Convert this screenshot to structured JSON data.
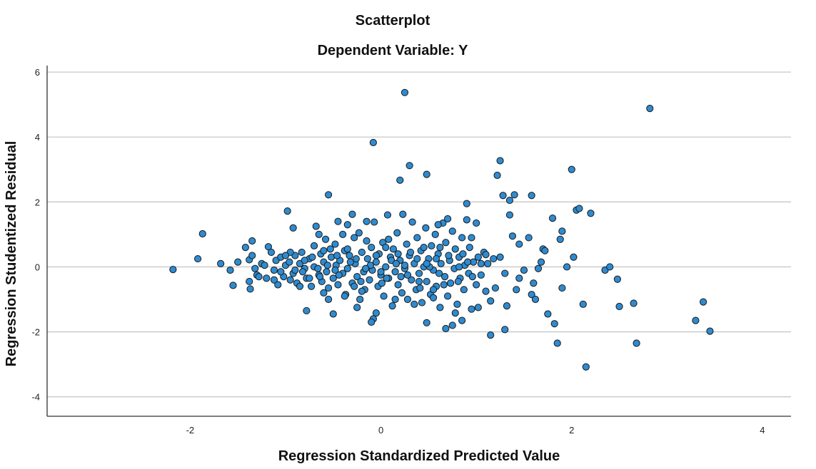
{
  "chart_data": {
    "type": "scatter",
    "title": "Scatterplot",
    "subtitle": "Dependent Variable: Y",
    "xlabel": "Regression Standardized Predicted Value",
    "ylabel": "Regression Studentized Residual",
    "xlim": [
      -3.5,
      4.3
    ],
    "ylim": [
      -4.6,
      6.2
    ],
    "xticks": [
      -2,
      0,
      2,
      4
    ],
    "yticks": [
      -4,
      -2,
      0,
      2,
      4,
      6
    ],
    "grid": "horizontal",
    "colors": {
      "point_fill": "#2e8bd0",
      "point_stroke": "#1a1a1a",
      "grid": "#c8c8c8",
      "axis": "#333333"
    },
    "points": [
      [
        -2.18,
        -0.08
      ],
      [
        -1.92,
        0.25
      ],
      [
        -1.87,
        1.02
      ],
      [
        -1.68,
        0.1
      ],
      [
        -1.58,
        -0.1
      ],
      [
        -1.55,
        -0.57
      ],
      [
        -1.5,
        0.15
      ],
      [
        -1.42,
        0.6
      ],
      [
        -1.38,
        0.22
      ],
      [
        -1.38,
        -0.45
      ],
      [
        -1.37,
        -0.68
      ],
      [
        -1.35,
        0.8
      ],
      [
        -1.32,
        -0.05
      ],
      [
        -1.3,
        -0.25
      ],
      [
        -1.25,
        0.1
      ],
      [
        -1.2,
        -0.35
      ],
      [
        -1.18,
        0.62
      ],
      [
        -1.15,
        0.45
      ],
      [
        -1.12,
        -0.1
      ],
      [
        -1.1,
        0.2
      ],
      [
        -1.08,
        -0.55
      ],
      [
        -1.05,
        0.3
      ],
      [
        -1.02,
        -0.3
      ],
      [
        -1.0,
        0.05
      ],
      [
        -0.98,
        1.72
      ],
      [
        -0.96,
        0.15
      ],
      [
        -0.95,
        -0.4
      ],
      [
        -0.92,
        -0.2
      ],
      [
        -0.9,
        0.35
      ],
      [
        -0.88,
        -0.5
      ],
      [
        -0.85,
        0.1
      ],
      [
        -0.83,
        0.45
      ],
      [
        -0.8,
        -0.05
      ],
      [
        -0.78,
        -0.35
      ],
      [
        -0.78,
        -1.35
      ],
      [
        -0.75,
        0.25
      ],
      [
        -0.73,
        -0.6
      ],
      [
        -0.7,
        0.0
      ],
      [
        -0.68,
        1.25
      ],
      [
        -0.65,
        -0.25
      ],
      [
        -0.63,
        0.4
      ],
      [
        -0.62,
        -0.45
      ],
      [
        -0.6,
        0.15
      ],
      [
        -0.58,
        0.85
      ],
      [
        -0.57,
        -0.15
      ],
      [
        -0.55,
        -0.65
      ],
      [
        -0.55,
        2.22
      ],
      [
        -0.52,
        0.3
      ],
      [
        -0.5,
        -0.35
      ],
      [
        -0.48,
        0.7
      ],
      [
        -0.47,
        0.05
      ],
      [
        -0.45,
        -0.55
      ],
      [
        -0.43,
        0.2
      ],
      [
        -0.4,
        -0.2
      ],
      [
        -0.38,
        0.5
      ],
      [
        -0.37,
        -0.85
      ],
      [
        -0.35,
        1.3
      ],
      [
        -0.35,
        -0.05
      ],
      [
        -0.33,
        0.35
      ],
      [
        -0.3,
        -0.5
      ],
      [
        -0.28,
        0.9
      ],
      [
        -0.27,
        0.1
      ],
      [
        -0.25,
        -0.3
      ],
      [
        -0.23,
        1.05
      ],
      [
        -0.22,
        -1.0
      ],
      [
        -0.2,
        0.45
      ],
      [
        -0.18,
        -0.15
      ],
      [
        -0.17,
        -0.7
      ],
      [
        -0.15,
        1.4
      ],
      [
        -0.14,
        0.25
      ],
      [
        -0.12,
        -0.4
      ],
      [
        -0.1,
        0.6
      ],
      [
        -0.09,
        -0.1
      ],
      [
        -0.07,
        1.38
      ],
      [
        -0.05,
        -1.42
      ],
      [
        -0.05,
        0.15
      ],
      [
        -0.03,
        -0.6
      ],
      [
        -0.02,
        0.4
      ],
      [
        0.0,
        -0.25
      ],
      [
        0.02,
        0.75
      ],
      [
        0.03,
        -0.9
      ],
      [
        0.05,
        0.0
      ],
      [
        0.07,
        1.6
      ],
      [
        0.08,
        -0.35
      ],
      [
        0.1,
        0.3
      ],
      [
        0.12,
        -1.2
      ],
      [
        0.13,
        0.55
      ],
      [
        0.15,
        -0.15
      ],
      [
        0.17,
        1.05
      ],
      [
        0.18,
        -0.55
      ],
      [
        0.2,
        0.2
      ],
      [
        0.22,
        -0.8
      ],
      [
        0.23,
        1.62
      ],
      [
        0.25,
        -0.05
      ],
      [
        0.27,
        0.7
      ],
      [
        0.28,
        -1.0
      ],
      [
        0.3,
        0.35
      ],
      [
        0.32,
        -0.4
      ],
      [
        0.33,
        1.38
      ],
      [
        0.35,
        0.1
      ],
      [
        0.37,
        -0.7
      ],
      [
        0.38,
        0.9
      ],
      [
        0.4,
        -0.2
      ],
      [
        0.42,
        0.5
      ],
      [
        0.43,
        -1.1
      ],
      [
        0.45,
        0.0
      ],
      [
        0.47,
        1.2
      ],
      [
        0.48,
        -0.45
      ],
      [
        0.5,
        0.25
      ],
      [
        0.52,
        -0.85
      ],
      [
        0.53,
        0.65
      ],
      [
        0.55,
        -0.1
      ],
      [
        0.57,
        1.0
      ],
      [
        0.58,
        -0.6
      ],
      [
        0.6,
        0.4
      ],
      [
        0.62,
        -1.25
      ],
      [
        0.63,
        0.1
      ],
      [
        0.65,
        1.35
      ],
      [
        0.67,
        -0.3
      ],
      [
        0.68,
        0.75
      ],
      [
        0.7,
        -0.9
      ],
      [
        0.72,
        0.2
      ],
      [
        0.73,
        -0.5
      ],
      [
        0.75,
        1.1
      ],
      [
        0.77,
        -0.05
      ],
      [
        0.78,
        0.55
      ],
      [
        0.8,
        -1.15
      ],
      [
        0.82,
        0.3
      ],
      [
        0.83,
        -0.35
      ],
      [
        0.85,
        0.9
      ],
      [
        0.87,
        -0.7
      ],
      [
        0.88,
        0.05
      ],
      [
        0.9,
        1.45
      ],
      [
        0.92,
        -0.2
      ],
      [
        0.93,
        0.6
      ],
      [
        0.95,
        -1.3
      ],
      [
        0.97,
        0.15
      ],
      [
        -0.82,
        -0.15
      ],
      [
        -0.72,
        0.3
      ],
      [
        -0.64,
        -0.3
      ],
      [
        -0.53,
        0.55
      ],
      [
        -0.44,
        -0.25
      ],
      [
        -0.32,
        0.15
      ],
      [
        -0.21,
        -0.45
      ],
      [
        -0.11,
        0.05
      ],
      [
        0.01,
        -0.5
      ],
      [
        0.11,
        0.2
      ],
      [
        0.21,
        -0.3
      ],
      [
        0.31,
        0.45
      ],
      [
        0.41,
        -0.65
      ],
      [
        0.51,
        0.0
      ],
      [
        0.61,
        -0.2
      ],
      [
        0.71,
        0.35
      ],
      [
        0.81,
        -0.45
      ],
      [
        0.91,
        0.15
      ],
      [
        1.0,
        -0.55
      ],
      [
        1.02,
        0.3
      ],
      [
        1.05,
        -0.25
      ],
      [
        1.08,
        0.45
      ],
      [
        1.1,
        -0.75
      ],
      [
        1.12,
        0.1
      ],
      [
        1.15,
        -1.05
      ],
      [
        1.18,
        0.25
      ],
      [
        1.2,
        -0.65
      ],
      [
        1.22,
        2.82
      ],
      [
        1.25,
        3.27
      ],
      [
        1.28,
        2.2
      ],
      [
        1.3,
        -0.2
      ],
      [
        1.32,
        -1.2
      ],
      [
        1.35,
        2.05
      ],
      [
        1.38,
        0.95
      ],
      [
        1.4,
        2.22
      ],
      [
        1.42,
        -0.7
      ],
      [
        1.45,
        0.7
      ],
      [
        1.5,
        -0.1
      ],
      [
        1.55,
        0.9
      ],
      [
        1.58,
        2.2
      ],
      [
        1.6,
        -0.5
      ],
      [
        1.65,
        -0.05
      ],
      [
        1.7,
        0.55
      ],
      [
        1.72,
        0.5
      ],
      [
        1.75,
        -1.45
      ],
      [
        1.8,
        1.5
      ],
      [
        1.82,
        -1.75
      ],
      [
        1.85,
        -2.35
      ],
      [
        1.88,
        0.85
      ],
      [
        1.9,
        1.1
      ],
      [
        1.95,
        0.0
      ],
      [
        2.0,
        3.0
      ],
      [
        2.05,
        1.75
      ],
      [
        2.08,
        1.8
      ],
      [
        2.12,
        -1.15
      ],
      [
        2.15,
        -3.08
      ],
      [
        2.2,
        1.65
      ],
      [
        2.35,
        -0.1
      ],
      [
        2.4,
        0.0
      ],
      [
        2.48,
        -0.38
      ],
      [
        2.5,
        -1.22
      ],
      [
        2.65,
        -1.12
      ],
      [
        2.68,
        -2.35
      ],
      [
        2.82,
        4.88
      ],
      [
        3.3,
        -1.65
      ],
      [
        3.38,
        -1.08
      ],
      [
        3.45,
        -1.98
      ],
      [
        0.25,
        5.37
      ],
      [
        -0.08,
        3.83
      ],
      [
        0.3,
        3.12
      ],
      [
        0.2,
        2.67
      ],
      [
        0.48,
        2.85
      ],
      [
        1.0,
        1.35
      ],
      [
        1.1,
        0.38
      ],
      [
        1.3,
        -1.93
      ],
      [
        1.15,
        -2.1
      ],
      [
        1.02,
        -1.25
      ],
      [
        0.9,
        1.95
      ],
      [
        0.7,
        1.48
      ],
      [
        0.6,
        1.3
      ],
      [
        0.85,
        -1.65
      ],
      [
        0.75,
        -1.8
      ],
      [
        0.68,
        -1.9
      ],
      [
        0.48,
        -1.72
      ],
      [
        -0.08,
        -1.6
      ],
      [
        -0.1,
        -1.7
      ],
      [
        -0.5,
        -1.45
      ],
      [
        -0.3,
        1.62
      ],
      [
        -0.92,
        1.2
      ],
      [
        -0.45,
        1.4
      ],
      [
        -0.65,
        1.0
      ],
      [
        -0.4,
        1.0
      ],
      [
        0.05,
        0.6
      ],
      [
        -0.6,
        0.5
      ],
      [
        -1.05,
        -0.15
      ],
      [
        -0.95,
        0.45
      ],
      [
        -1.22,
        0.05
      ],
      [
        -0.85,
        -0.6
      ],
      [
        -0.75,
        -0.35
      ],
      [
        -0.25,
        -1.25
      ],
      [
        0.15,
        -1.0
      ],
      [
        0.35,
        -1.15
      ],
      [
        0.55,
        -0.95
      ],
      [
        0.78,
        -1.42
      ],
      [
        1.68,
        0.15
      ],
      [
        1.58,
        -0.85
      ],
      [
        1.35,
        1.6
      ],
      [
        1.45,
        -0.35
      ],
      [
        1.9,
        -0.65
      ],
      [
        2.02,
        0.3
      ],
      [
        1.62,
        -1.0
      ],
      [
        1.25,
        0.3
      ],
      [
        0.95,
        0.9
      ],
      [
        0.55,
        -0.7
      ],
      [
        0.45,
        0.6
      ],
      [
        -0.15,
        0.8
      ],
      [
        -0.55,
        -1.0
      ],
      [
        -0.38,
        -0.9
      ],
      [
        -0.2,
        -0.75
      ],
      [
        0.0,
        -0.15
      ],
      [
        0.25,
        0.05
      ],
      [
        -0.9,
        -0.1
      ],
      [
        -1.12,
        -0.4
      ],
      [
        -0.7,
        0.65
      ],
      [
        -0.6,
        -0.8
      ],
      [
        -0.35,
        0.55
      ],
      [
        -0.05,
        0.35
      ],
      [
        0.38,
        0.25
      ],
      [
        0.62,
        0.6
      ],
      [
        0.82,
        0.0
      ],
      [
        1.05,
        0.1
      ],
      [
        0.4,
        -0.45
      ],
      [
        -0.48,
        -0.1
      ],
      [
        -0.28,
        -0.6
      ],
      [
        0.08,
        0.85
      ],
      [
        0.18,
        0.4
      ],
      [
        -0.8,
        0.2
      ],
      [
        -1.0,
        0.35
      ],
      [
        -1.28,
        -0.3
      ],
      [
        -1.35,
        0.35
      ],
      [
        -0.66,
        -0.05
      ],
      [
        -0.56,
        0.05
      ],
      [
        -0.46,
        0.35
      ],
      [
        -0.26,
        0.25
      ],
      [
        -0.16,
        -0.05
      ],
      [
        0.06,
        -0.35
      ],
      [
        0.16,
        0.1
      ],
      [
        0.28,
        -0.25
      ],
      [
        0.48,
        0.1
      ],
      [
        0.58,
        0.25
      ],
      [
        0.66,
        -0.55
      ],
      [
        0.86,
        0.4
      ],
      [
        0.96,
        -0.3
      ]
    ]
  }
}
